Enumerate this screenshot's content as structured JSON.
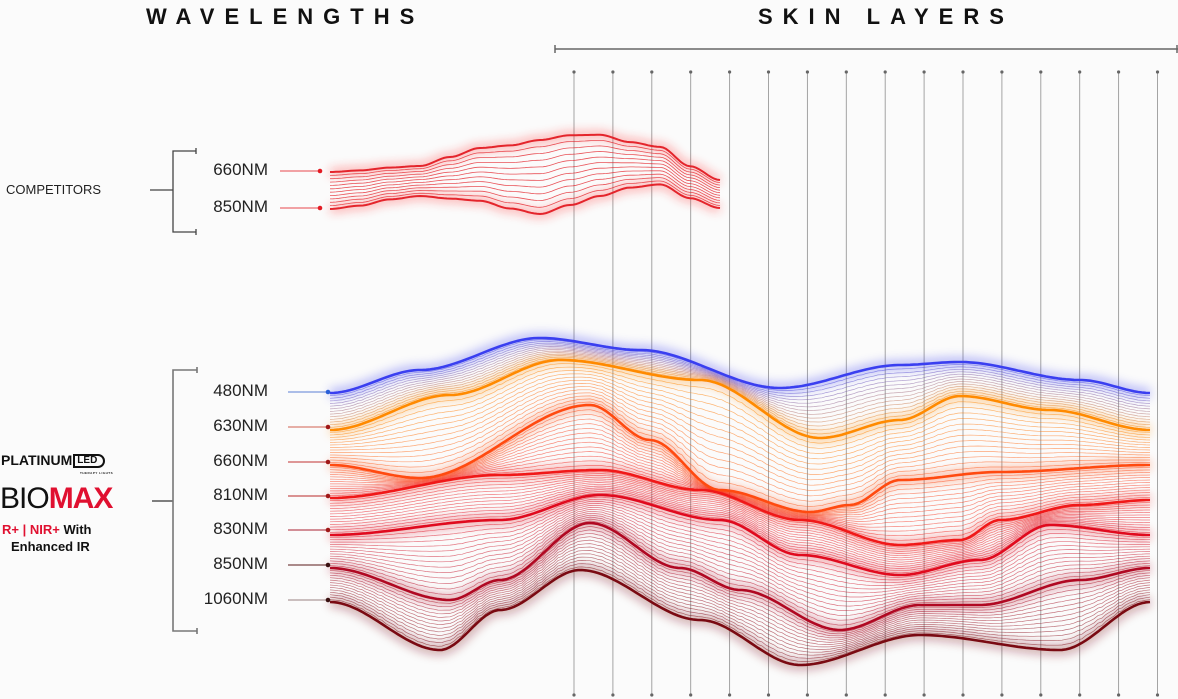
{
  "headings": {
    "wavelengths": "WAVELENGTHS",
    "skin_layers": "SKIN LAYERS"
  },
  "competitors": {
    "label": "COMPETITORS",
    "wavelengths": [
      {
        "label": "660NM",
        "color": "#e31b23"
      },
      {
        "label": "850NM",
        "color": "#e31b23"
      }
    ]
  },
  "product": {
    "brand": "PLATINUM",
    "brand_badge": "LED",
    "brand_sub": "THERAPY LIGHTS",
    "name_prefix": "BIO",
    "name_suffix": "MAX",
    "tagline_red": "R+ | NIR+",
    "tagline_rest": " With",
    "tagline_line2": "Enhanced IR",
    "wavelengths": [
      {
        "label": "480NM",
        "color": "#3a3ff0",
        "lead": "#5b7fd6"
      },
      {
        "label": "630NM",
        "color": "#ff8a00",
        "lead": "#d06050"
      },
      {
        "label": "660NM",
        "color": "#ff4a10",
        "lead": "#c03030"
      },
      {
        "label": "810NM",
        "color": "#f01818",
        "lead": "#b82828"
      },
      {
        "label": "830NM",
        "color": "#e00a1e",
        "lead": "#a82030"
      },
      {
        "label": "850NM",
        "color": "#b00822",
        "lead": "#5a1a1a"
      },
      {
        "label": "1060NM",
        "color": "#7a0a12",
        "lead": "#9a8080"
      }
    ]
  },
  "skin_layers": {
    "count": 16
  },
  "colors": {
    "accent_red": "#e01030",
    "axis": "#777777"
  }
}
